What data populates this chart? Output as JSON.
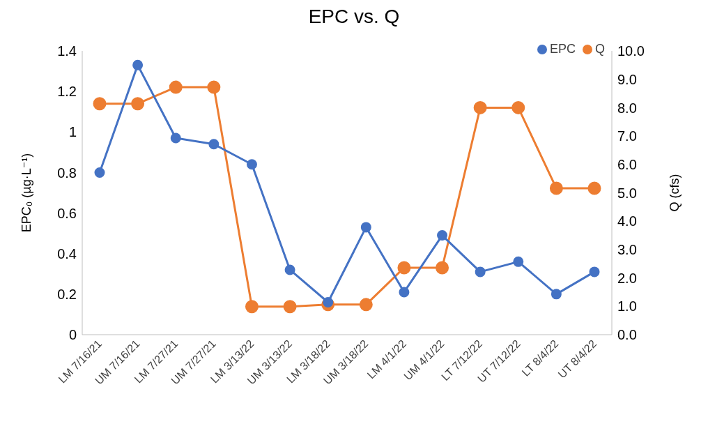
{
  "chart_data": {
    "type": "line",
    "title": "EPC vs. Q",
    "ylabel": "EPC₀ (µg·L⁻¹)",
    "y2label": "Q (cfs)",
    "categories": [
      "LM 7/16/21",
      "UM 7/16/21",
      "LM 7/27/21",
      "UM 7/27/21",
      "LM 3/13/22",
      "UM 3/13/22",
      "LM 3/18/22",
      "UM 3/18/22",
      "LM 4/1/22",
      "UM 4/1/22",
      "LT 7/12/22",
      "UT 7/12/22",
      "LT 8/4/22",
      "UT 8/4/22"
    ],
    "series": [
      {
        "name": "Q",
        "color": "#ed7d31",
        "axis": "y2",
        "values": [
          8.14,
          8.14,
          8.72,
          8.72,
          0.99,
          0.99,
          1.06,
          1.06,
          2.36,
          2.36,
          8.0,
          8.0,
          5.16,
          5.16
        ]
      },
      {
        "name": "EPC",
        "color": "#4472c4",
        "values": [
          0.8,
          1.33,
          0.97,
          0.94,
          0.84,
          0.32,
          0.16,
          0.53,
          0.21,
          0.49,
          0.31,
          0.36,
          0.2,
          0.31
        ]
      }
    ],
    "ylim": [
      0,
      1.4
    ],
    "yticks": [
      0,
      0.2,
      0.4,
      0.6,
      0.8,
      1,
      1.2,
      1.4
    ],
    "y2lim": [
      0,
      10
    ],
    "y2ticks": [
      {
        "value": 0,
        "label": "0.0"
      },
      {
        "value": 1,
        "label": "1.0"
      },
      {
        "value": 2,
        "label": "2.0"
      },
      {
        "value": 3,
        "label": "3.0"
      },
      {
        "value": 4,
        "label": "4.0"
      },
      {
        "value": 5,
        "label": "5.0"
      },
      {
        "value": 6,
        "label": "6.0"
      },
      {
        "value": 7,
        "label": "7.0"
      },
      {
        "value": 8,
        "label": "8.0"
      },
      {
        "value": 9,
        "label": "9.0"
      },
      {
        "value": 10,
        "label": "10.0"
      }
    ],
    "grid": false,
    "legend": "top right",
    "marker": "circle",
    "line_style": "solid"
  }
}
